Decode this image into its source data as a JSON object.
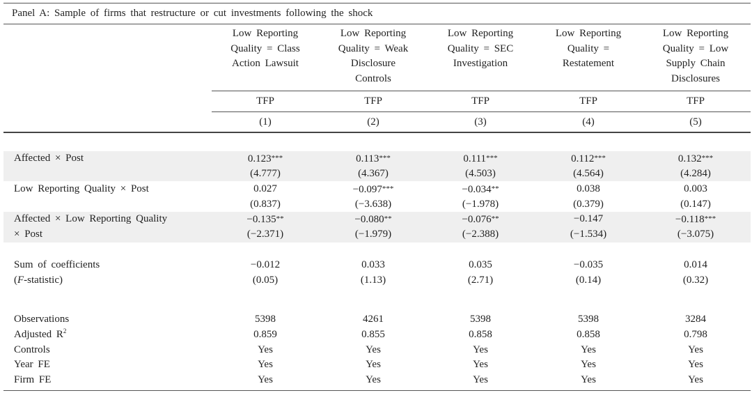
{
  "panel_title": "Panel A: Sample of firms that restructure or cut investments following the shock",
  "columns": [
    {
      "header": [
        "Low Reporting",
        "Quality = Class",
        "Action Lawsuit"
      ],
      "dep_var": "TFP",
      "number": "(1)"
    },
    {
      "header": [
        "Low Reporting",
        "Quality = Weak",
        "Disclosure",
        "Controls"
      ],
      "dep_var": "TFP",
      "number": "(2)"
    },
    {
      "header": [
        "Low Reporting",
        "Quality = SEC",
        "Investigation"
      ],
      "dep_var": "TFP",
      "number": "(3)"
    },
    {
      "header": [
        "Low Reporting",
        "Quality =",
        "Restatement"
      ],
      "dep_var": "TFP",
      "number": "(4)"
    },
    {
      "header": [
        "Low Reporting",
        "Quality = Low",
        "Supply Chain",
        "Disclosures"
      ],
      "dep_var": "TFP",
      "number": "(5)"
    }
  ],
  "rows": [
    {
      "label": "Affected × Post",
      "values": [
        "0.123***",
        "0.113***",
        "0.111***",
        "0.112***",
        "0.132***"
      ],
      "shaded": true
    },
    {
      "label": "",
      "values": [
        "(4.777)",
        "(4.367)",
        "(4.503)",
        "(4.564)",
        "(4.284)"
      ],
      "shaded": true
    },
    {
      "label": "Low Reporting Quality × Post",
      "values": [
        "0.027",
        "−0.097***",
        "−0.034**",
        "0.038",
        "0.003"
      ],
      "shaded": false
    },
    {
      "label": "",
      "values": [
        "(0.837)",
        "(−3.638)",
        "(−1.978)",
        "(0.379)",
        "(0.147)"
      ],
      "shaded": false
    },
    {
      "label": "Affected × Low Reporting Quality",
      "values": [
        "−0.135**",
        "−0.080**",
        "−0.076**",
        "−0.147",
        "−0.118***"
      ],
      "shaded": true
    },
    {
      "label": "× Post",
      "values": [
        "(−2.371)",
        "(−1.979)",
        "(−2.388)",
        "(−1.534)",
        "(−3.075)"
      ],
      "shaded": true
    },
    {
      "label": "Sum of coefficients",
      "values": [
        "−0.012",
        "0.033",
        "0.035",
        "−0.035",
        "0.014"
      ],
      "shaded": false
    },
    {
      "label": "(F-statistic)",
      "values": [
        "(0.05)",
        "(1.13)",
        "(2.71)",
        "(0.14)",
        "(0.32)"
      ],
      "shaded": false
    },
    {
      "label": "Observations",
      "values": [
        "5398",
        "4261",
        "5398",
        "5398",
        "3284"
      ],
      "shaded": false
    },
    {
      "label": "Adjusted R2",
      "values": [
        "0.859",
        "0.855",
        "0.858",
        "0.858",
        "0.798"
      ],
      "shaded": false
    },
    {
      "label": "Controls",
      "values": [
        "Yes",
        "Yes",
        "Yes",
        "Yes",
        "Yes"
      ],
      "shaded": false
    },
    {
      "label": "Year FE",
      "values": [
        "Yes",
        "Yes",
        "Yes",
        "Yes",
        "Yes"
      ],
      "shaded": false
    },
    {
      "label": "Firm FE",
      "values": [
        "Yes",
        "Yes",
        "Yes",
        "Yes",
        "Yes"
      ],
      "shaded": false
    }
  ]
}
